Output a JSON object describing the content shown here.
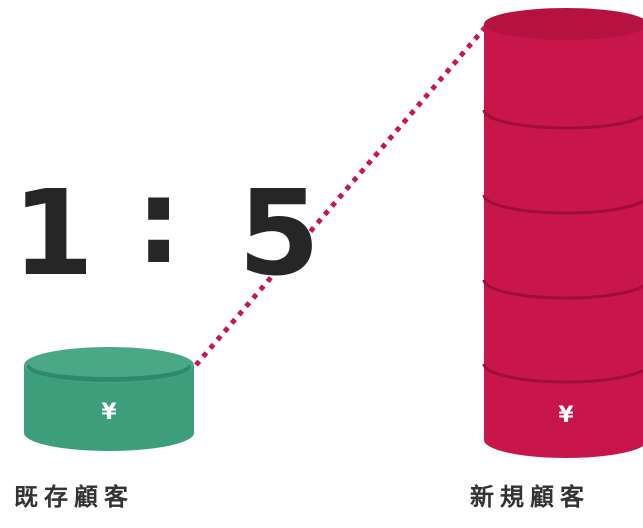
{
  "ratio": {
    "left_value": "1",
    "separator": ":",
    "right_value": "5"
  },
  "existing_customers": {
    "label": "既存顧客",
    "currency_symbol": "¥",
    "color_body": "#3d9e7c",
    "color_top": "#4aa886",
    "color_shade": "#2f8a6b"
  },
  "new_customers": {
    "label": "新規顧客",
    "currency_symbol": "¥",
    "color_body": "#c8164a",
    "color_top": "#b5123f",
    "color_shade": "#a3103a"
  },
  "connector": {
    "color": "#c8164a",
    "style": "dotted"
  },
  "text_color": "#262626"
}
